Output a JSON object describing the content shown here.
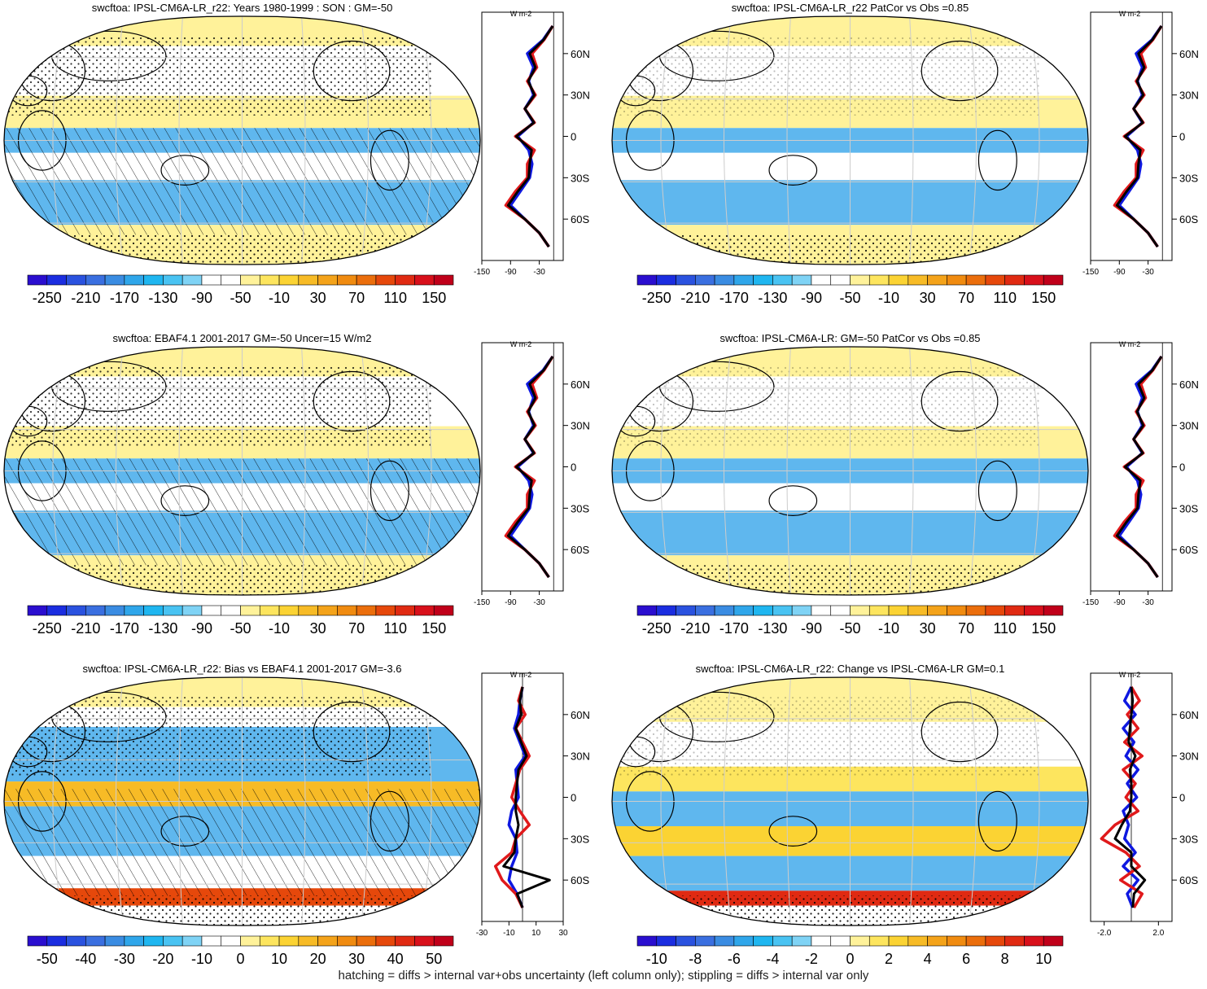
{
  "footnote": "hatching = diffs > internal var+obs uncertainty (left column only); stippling = diffs > internal var only",
  "palette": {
    "std": [
      "#2a0ecf",
      "#1b2de0",
      "#2a52df",
      "#3a6fe0",
      "#3a8ce2",
      "#2fa6ea",
      "#1fb6f0",
      "#49c3f2",
      "#7fd3f5",
      "#ffffff",
      "#ffffff",
      "#fff29a",
      "#fde55e",
      "#fbd333",
      "#f7bb26",
      "#f4a31a",
      "#f08b10",
      "#eb6e0c",
      "#e6480b",
      "#e02a12",
      "#d8101b",
      "#c0001a"
    ],
    "ocean_base": "#f2f2f2",
    "yellow": "#fff29a",
    "blue": "#5fb7ee",
    "model_line": "#e0191b",
    "obs_line": "#0e18e0",
    "mean_line": "#000000"
  },
  "chart_data": [
    {
      "type": "heatmap",
      "title": "swcftoa: IPSL-CM6A-LR_r22: Years 1980-1999 : SON : GM=-50",
      "colorbar_labels": [
        "-250",
        "-210",
        "-170",
        "-130",
        "-90",
        "-50",
        "-10",
        "30",
        "70",
        "110",
        "150"
      ],
      "zonal_xticks": [
        "-150",
        "-90",
        "-30"
      ],
      "zonal_yticks": [
        "60N",
        "30N",
        "0",
        "30S",
        "60S"
      ],
      "zonal_unit": "W m-2",
      "zonal_xlim": [
        -150,
        20
      ],
      "hatching": true,
      "zonal_profile": {
        "lat": [
          80,
          70,
          60,
          50,
          40,
          30,
          20,
          10,
          0,
          -10,
          -20,
          -30,
          -40,
          -50,
          -60,
          -70,
          -80
        ],
        "model": [
          -2,
          -20,
          -45,
          -35,
          -55,
          -38,
          -60,
          -40,
          -80,
          -40,
          -55,
          -55,
          -80,
          -100,
          -60,
          -30,
          -10
        ],
        "obs": [
          -2,
          -22,
          -55,
          -42,
          -52,
          -42,
          -60,
          -42,
          -75,
          -52,
          -45,
          -50,
          -70,
          -90,
          -60,
          -30,
          -10
        ],
        "mean": [
          -2,
          -21,
          -50,
          -38,
          -53,
          -40,
          -60,
          -41,
          -78,
          -46,
          -50,
          -52,
          -75,
          -95,
          -60,
          -30,
          -10
        ]
      }
    },
    {
      "type": "heatmap",
      "title": "swcftoa: IPSL-CM6A-LR_r22 PatCor vs Obs =0.85",
      "colorbar_labels": [
        "-250",
        "-210",
        "-170",
        "-130",
        "-90",
        "-50",
        "-10",
        "30",
        "70",
        "110",
        "150"
      ],
      "zonal_xticks": [
        "-150",
        "-90",
        "-30"
      ],
      "zonal_yticks": [
        "60N",
        "30N",
        "0",
        "30S",
        "60S"
      ],
      "zonal_unit": "W m-2",
      "zonal_xlim": [
        -150,
        20
      ],
      "hatching": false,
      "zonal_profile": {
        "lat": [
          80,
          70,
          60,
          50,
          40,
          30,
          20,
          10,
          0,
          -10,
          -20,
          -30,
          -40,
          -50,
          -60,
          -70,
          -80
        ],
        "model": [
          -2,
          -20,
          -45,
          -35,
          -55,
          -38,
          -60,
          -40,
          -80,
          -40,
          -55,
          -55,
          -80,
          -100,
          -60,
          -30,
          -10
        ],
        "obs": [
          -2,
          -22,
          -55,
          -42,
          -52,
          -42,
          -60,
          -42,
          -75,
          -52,
          -45,
          -50,
          -70,
          -90,
          -60,
          -30,
          -10
        ],
        "mean": [
          -2,
          -21,
          -50,
          -38,
          -53,
          -40,
          -60,
          -41,
          -78,
          -46,
          -50,
          -52,
          -75,
          -95,
          -60,
          -30,
          -10
        ]
      }
    },
    {
      "type": "heatmap",
      "title": "swcftoa: EBAF4.1 2001-2017 GM=-50 Uncer=15 W/m2",
      "colorbar_labels": [
        "-250",
        "-210",
        "-170",
        "-130",
        "-90",
        "-50",
        "-10",
        "30",
        "70",
        "110",
        "150"
      ],
      "zonal_xticks": [
        "-150",
        "-90",
        "-30"
      ],
      "zonal_yticks": [
        "60N",
        "30N",
        "0",
        "30S",
        "60S"
      ],
      "zonal_unit": "W m-2",
      "zonal_xlim": [
        -150,
        20
      ],
      "hatching": true,
      "zonal_profile": {
        "lat": [
          80,
          70,
          60,
          50,
          40,
          30,
          20,
          10,
          0,
          -10,
          -20,
          -30,
          -40,
          -50,
          -60,
          -70,
          -80
        ],
        "model": [
          -2,
          -20,
          -45,
          -35,
          -55,
          -38,
          -60,
          -40,
          -80,
          -40,
          -55,
          -55,
          -80,
          -100,
          -60,
          -30,
          -10
        ],
        "obs": [
          -2,
          -22,
          -55,
          -42,
          -52,
          -42,
          -60,
          -42,
          -75,
          -52,
          -45,
          -50,
          -70,
          -90,
          -60,
          -30,
          -10
        ],
        "mean": [
          -2,
          -21,
          -50,
          -38,
          -53,
          -40,
          -60,
          -41,
          -78,
          -46,
          -50,
          -52,
          -75,
          -95,
          -60,
          -30,
          -10
        ]
      }
    },
    {
      "type": "heatmap",
      "title": "swcftoa: IPSL-CM6A-LR: GM=-50 PatCor vs Obs =0.85",
      "colorbar_labels": [
        "-250",
        "-210",
        "-170",
        "-130",
        "-90",
        "-50",
        "-10",
        "30",
        "70",
        "110",
        "150"
      ],
      "zonal_xticks": [
        "-150",
        "-90",
        "-30"
      ],
      "zonal_yticks": [
        "60N",
        "30N",
        "0",
        "30S",
        "60S"
      ],
      "zonal_unit": "W m-2",
      "zonal_xlim": [
        -150,
        20
      ],
      "hatching": false,
      "zonal_profile": {
        "lat": [
          80,
          70,
          60,
          50,
          40,
          30,
          20,
          10,
          0,
          -10,
          -20,
          -30,
          -40,
          -50,
          -60,
          -70,
          -80
        ],
        "model": [
          -2,
          -20,
          -45,
          -35,
          -55,
          -38,
          -60,
          -40,
          -80,
          -40,
          -55,
          -55,
          -80,
          -100,
          -60,
          -30,
          -10
        ],
        "obs": [
          -2,
          -22,
          -55,
          -42,
          -52,
          -42,
          -60,
          -42,
          -75,
          -52,
          -45,
          -50,
          -70,
          -90,
          -60,
          -30,
          -10
        ],
        "mean": [
          -2,
          -21,
          -50,
          -38,
          -53,
          -40,
          -60,
          -41,
          -78,
          -46,
          -50,
          -52,
          -75,
          -95,
          -60,
          -30,
          -10
        ]
      }
    },
    {
      "type": "heatmap",
      "title": "swcftoa: IPSL-CM6A-LR_r22: Bias vs EBAF4.1 2001-2017  GM=-3.6",
      "colorbar_labels": [
        "-50",
        "-40",
        "-30",
        "-20",
        "-10",
        "0",
        "10",
        "20",
        "30",
        "40",
        "50"
      ],
      "zonal_xticks": [
        "-30",
        "-10",
        "10",
        "30"
      ],
      "zonal_yticks": [
        "60N",
        "30N",
        "0",
        "30S",
        "60S"
      ],
      "zonal_unit": "W m-2",
      "zonal_xlim": [
        -30,
        30
      ],
      "hatching": true,
      "zonal_profile": {
        "lat": [
          80,
          70,
          60,
          50,
          40,
          30,
          20,
          10,
          0,
          -10,
          -20,
          -30,
          -40,
          -50,
          -60,
          -70,
          -80
        ],
        "model": [
          0,
          -3,
          2,
          -5,
          0,
          5,
          -2,
          -5,
          -8,
          -2,
          5,
          -5,
          -8,
          -20,
          -15,
          -5,
          0
        ],
        "obs": [
          0,
          -2,
          -3,
          -6,
          -2,
          2,
          -5,
          -4,
          -3,
          -8,
          -10,
          -5,
          -4,
          -8,
          -10,
          -4,
          0
        ],
        "mean": [
          0,
          -2,
          -1,
          -5,
          -1,
          3,
          -3,
          -4,
          -5,
          -5,
          -3,
          -5,
          -6,
          -14,
          20,
          -4,
          0
        ]
      }
    },
    {
      "type": "heatmap",
      "title": "swcftoa: IPSL-CM6A-LR_r22: Change vs IPSL-CM6A-LR GM=0.1",
      "colorbar_labels": [
        "-10",
        "-8",
        "-6",
        "-4",
        "-2",
        "0",
        "2",
        "4",
        "6",
        "8",
        "10"
      ],
      "zonal_xticks": [
        "-2.0",
        "2.0"
      ],
      "zonal_yticks": [
        "60N",
        "30N",
        "0",
        "30S",
        "60S"
      ],
      "zonal_unit": "W m-2",
      "zonal_xlim": [
        -3,
        3
      ],
      "hatching": false,
      "zonal_profile": {
        "lat": [
          80,
          70,
          60,
          50,
          40,
          30,
          20,
          10,
          0,
          -10,
          -20,
          -30,
          -40,
          -50,
          -60,
          -70,
          -80
        ],
        "model": [
          0,
          0.6,
          -0.3,
          0.5,
          -0.5,
          0.8,
          -0.6,
          0.3,
          -0.4,
          0.5,
          -1.2,
          -2.2,
          -0.4,
          0.6,
          -0.8,
          0.8,
          0.2
        ],
        "obs": [
          0,
          -0.5,
          0.3,
          -0.6,
          0.2,
          -0.4,
          0.5,
          -0.3,
          0.4,
          -0.6,
          -0.2,
          -0.5,
          0.3,
          -0.6,
          0.5,
          -0.3,
          0.1
        ],
        "mean": [
          0,
          0.1,
          0,
          -0.1,
          -0.2,
          0.3,
          -0.1,
          0,
          0,
          -0.1,
          -0.7,
          -1.2,
          0,
          0,
          1.0,
          0.2,
          0.1
        ]
      }
    }
  ]
}
